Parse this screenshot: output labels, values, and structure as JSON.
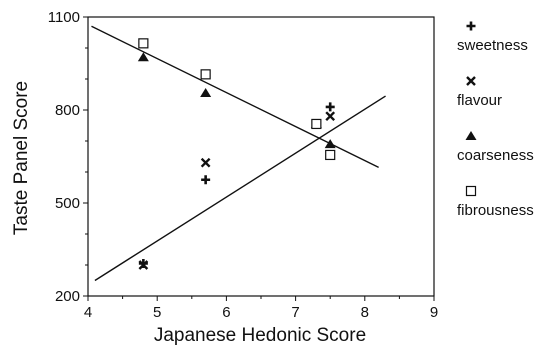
{
  "chart_data": {
    "type": "scatter",
    "title": "",
    "xlabel": "Japanese Hedonic Score",
    "ylabel": "Taste Panel Score",
    "xlim": [
      4,
      9
    ],
    "ylim": [
      200,
      1100
    ],
    "xticks": [
      "4",
      "5",
      "6",
      "7",
      "8",
      "9"
    ],
    "yticks": [
      "200",
      "500",
      "800",
      "1100"
    ],
    "grid": false,
    "legend_position": "right",
    "series": [
      {
        "name": "sweetness",
        "marker": "plus",
        "points": [
          [
            4.8,
            305
          ],
          [
            5.7,
            575
          ],
          [
            7.3,
            755
          ],
          [
            7.5,
            810
          ]
        ]
      },
      {
        "name": "flavour",
        "marker": "cross",
        "points": [
          [
            4.8,
            300
          ],
          [
            5.7,
            630
          ],
          [
            7.3,
            755
          ],
          [
            7.5,
            780
          ]
        ]
      },
      {
        "name": "coarseness",
        "marker": "triangle",
        "points": [
          [
            4.8,
            970
          ],
          [
            5.7,
            855
          ],
          [
            7.3,
            755
          ],
          [
            7.5,
            690
          ]
        ]
      },
      {
        "name": "fibrousness",
        "marker": "square",
        "points": [
          [
            4.8,
            1015
          ],
          [
            5.7,
            915
          ],
          [
            7.3,
            755
          ],
          [
            7.5,
            655
          ]
        ]
      }
    ],
    "trend_lines": [
      {
        "name": "increasing",
        "from": [
          4.1,
          250
        ],
        "to": [
          8.3,
          845
        ]
      },
      {
        "name": "decreasing",
        "from": [
          4.05,
          1070
        ],
        "to": [
          8.2,
          615
        ]
      }
    ]
  }
}
